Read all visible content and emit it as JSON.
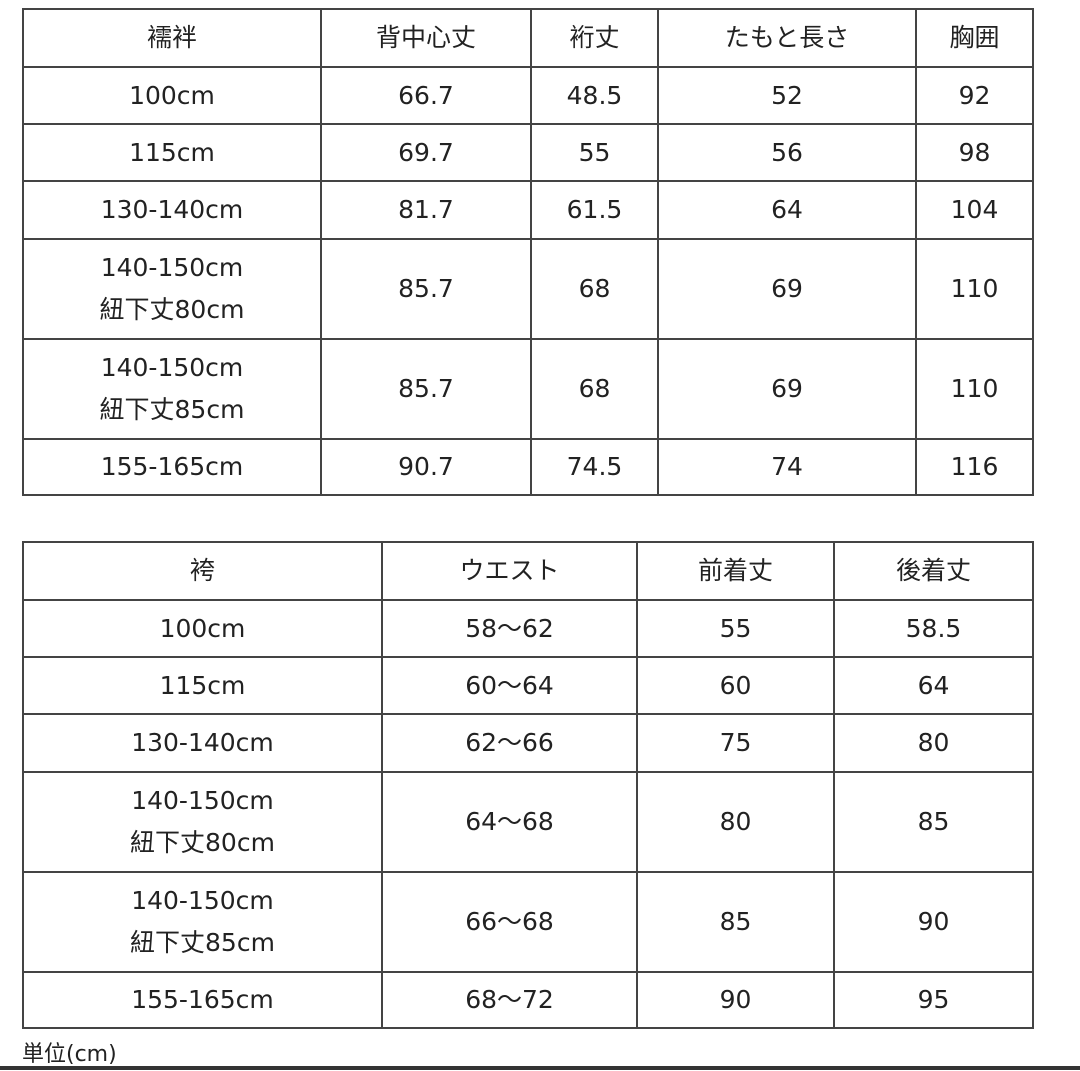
{
  "juban_table": {
    "headers": [
      "襦袢",
      "背中心丈",
      "裄丈",
      "たもと長さ",
      "胸囲"
    ],
    "rows": [
      [
        "100cm",
        "66.7",
        "48.5",
        "52",
        "92"
      ],
      [
        "115cm",
        "69.7",
        "55",
        "56",
        "98"
      ],
      [
        "130-140cm",
        "81.7",
        "61.5",
        "64",
        "104"
      ],
      [
        "140-150cm\n紐下丈80cm",
        "85.7",
        "68",
        "69",
        "110"
      ],
      [
        "140-150cm\n紐下丈85cm",
        "85.7",
        "68",
        "69",
        "110"
      ],
      [
        "155-165cm",
        "90.7",
        "74.5",
        "74",
        "116"
      ]
    ]
  },
  "hakama_table": {
    "headers": [
      "袴",
      "ウエスト",
      "前着丈",
      "後着丈"
    ],
    "rows": [
      [
        "100cm",
        "58〜62",
        "55",
        "58.5"
      ],
      [
        "115cm",
        "60〜64",
        "60",
        "64"
      ],
      [
        "130-140cm",
        "62〜66",
        "75",
        "80"
      ],
      [
        "140-150cm\n紐下丈80cm",
        "64〜68",
        "80",
        "85"
      ],
      [
        "140-150cm\n紐下丈85cm",
        "66〜68",
        "85",
        "90"
      ],
      [
        "155-165cm",
        "68〜72",
        "90",
        "95"
      ]
    ]
  },
  "unit_note": "単位(cm)"
}
